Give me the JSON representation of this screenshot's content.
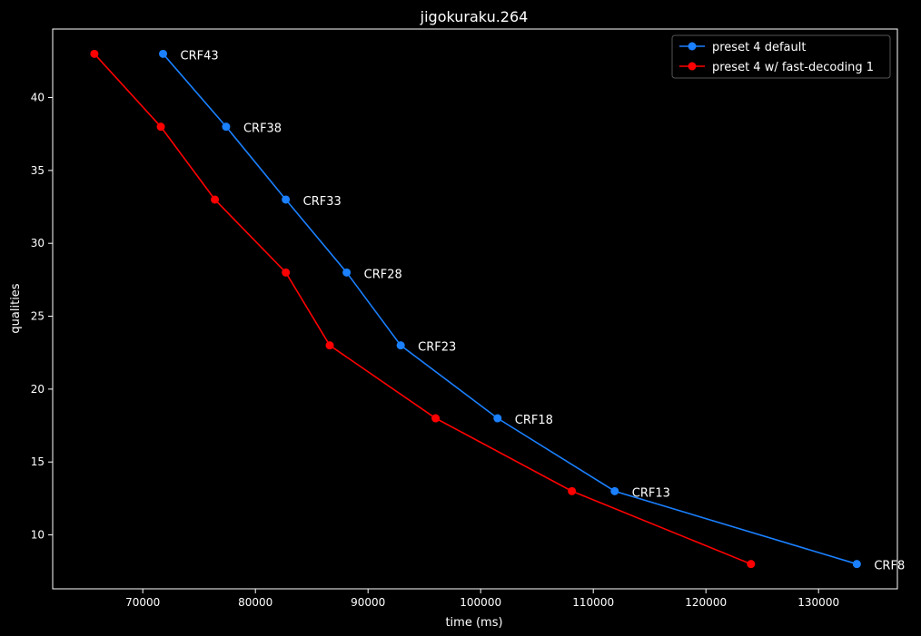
{
  "chart_data": {
    "type": "line",
    "title": "jigokuraku.264",
    "xlabel": "time (ms)",
    "ylabel": "qualities",
    "xlim": [
      62000,
      137000
    ],
    "ylim": [
      6.3,
      44.7
    ],
    "xticks": [
      70000,
      80000,
      90000,
      100000,
      110000,
      120000,
      130000
    ],
    "yticks": [
      10,
      15,
      20,
      25,
      30,
      35,
      40
    ],
    "grid": false,
    "legend_position": "top-right",
    "series": [
      {
        "name": "preset 4 default",
        "color": "#1a80ff",
        "x": [
          71800,
          77400,
          82700,
          88100,
          92900,
          101500,
          111900,
          133400
        ],
        "y": [
          43,
          38,
          33,
          28,
          23,
          18,
          13,
          8
        ]
      },
      {
        "name": "preset 4 w/ fast-decoding 1",
        "color": "#ff0000",
        "x": [
          65700,
          71600,
          76400,
          82700,
          86600,
          96000,
          108100,
          124000
        ],
        "y": [
          43,
          38,
          33,
          28,
          23,
          18,
          13,
          8
        ]
      }
    ],
    "annotations": [
      {
        "text": "CRF43",
        "x": 71800,
        "y": 43
      },
      {
        "text": "CRF38",
        "x": 77400,
        "y": 38
      },
      {
        "text": "CRF33",
        "x": 82700,
        "y": 33
      },
      {
        "text": "CRF28",
        "x": 88100,
        "y": 28
      },
      {
        "text": "CRF23",
        "x": 92900,
        "y": 23
      },
      {
        "text": "CRF18",
        "x": 101500,
        "y": 18
      },
      {
        "text": "CRF13",
        "x": 111900,
        "y": 13
      },
      {
        "text": "CRF8",
        "x": 133400,
        "y": 8
      }
    ]
  }
}
